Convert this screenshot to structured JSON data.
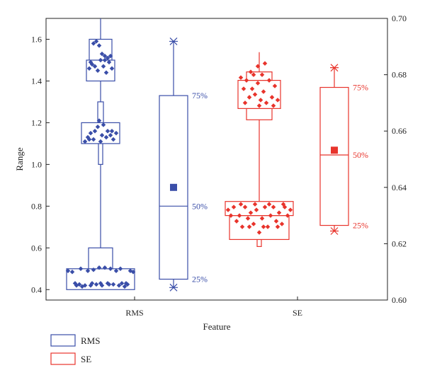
{
  "chart_data": {
    "type": "box",
    "title": "",
    "xlabel": "Feature",
    "ylabel": "Range",
    "y_left": {
      "min": 0.35,
      "max": 1.7,
      "ticks": [
        0.4,
        0.6,
        0.8,
        1.0,
        1.2,
        1.4,
        1.6
      ],
      "tick_labels": [
        "0.4",
        "0.6",
        "0.8",
        "1.0",
        "1.2",
        "1.4",
        "1.6"
      ]
    },
    "y_right": {
      "min": 0.6,
      "max": 0.7,
      "ticks": [
        0.6,
        0.62,
        0.64,
        0.66,
        0.68,
        0.7
      ],
      "tick_labels": [
        "0.60",
        "0.62",
        "0.64",
        "0.66",
        "0.68",
        "0.70"
      ]
    },
    "categories": [
      "RMS",
      "SE"
    ],
    "legend": {
      "placement": "bottom-left",
      "entries": [
        "RMS",
        "SE"
      ]
    },
    "series": [
      {
        "name": "RMS",
        "color": "#3a4ea8",
        "axis": "left",
        "whisker": [
          0.4,
          1.7
        ],
        "bins": [
          {
            "low": 0.4,
            "high": 0.5,
            "half": 48
          },
          {
            "low": 0.5,
            "high": 0.6,
            "half": 17
          },
          {
            "low": 1.0,
            "high": 1.1,
            "half": 3
          },
          {
            "low": 1.1,
            "high": 1.2,
            "half": 27
          },
          {
            "low": 1.2,
            "high": 1.3,
            "half": 4
          },
          {
            "low": 1.4,
            "high": 1.5,
            "half": 20
          },
          {
            "low": 1.5,
            "high": 1.6,
            "half": 16
          }
        ],
        "points": [
          {
            "dx": -46,
            "y": 0.49
          },
          {
            "dx": -40,
            "y": 0.485
          },
          {
            "dx": -34,
            "y": 0.42
          },
          {
            "dx": -30,
            "y": 0.425
          },
          {
            "dx": -26,
            "y": 0.415
          },
          {
            "dx": -22,
            "y": 0.42
          },
          {
            "dx": -18,
            "y": 0.49
          },
          {
            "dx": -14,
            "y": 0.42
          },
          {
            "dx": -10,
            "y": 0.495
          },
          {
            "dx": -6,
            "y": 0.425
          },
          {
            "dx": -2,
            "y": 0.505
          },
          {
            "dx": 2,
            "y": 0.42
          },
          {
            "dx": 6,
            "y": 0.505
          },
          {
            "dx": 10,
            "y": 0.43
          },
          {
            "dx": 14,
            "y": 0.5
          },
          {
            "dx": 18,
            "y": 0.425
          },
          {
            "dx": 22,
            "y": 0.49
          },
          {
            "dx": 26,
            "y": 0.42
          },
          {
            "dx": 30,
            "y": 0.43
          },
          {
            "dx": 34,
            "y": 0.415
          },
          {
            "dx": 38,
            "y": 0.425
          },
          {
            "dx": 42,
            "y": 0.49
          },
          {
            "dx": 46,
            "y": 0.485
          },
          {
            "dx": -36,
            "y": 0.43
          },
          {
            "dx": -28,
            "y": 0.5
          },
          {
            "dx": -12,
            "y": 0.43
          },
          {
            "dx": 0,
            "y": 0.43
          },
          {
            "dx": 12,
            "y": 0.425
          },
          {
            "dx": 28,
            "y": 0.5
          },
          {
            "dx": 36,
            "y": 0.43
          },
          {
            "dx": -22,
            "y": 1.11
          },
          {
            "dx": -18,
            "y": 1.13
          },
          {
            "dx": -14,
            "y": 1.15
          },
          {
            "dx": -10,
            "y": 1.12
          },
          {
            "dx": -8,
            "y": 1.16
          },
          {
            "dx": -4,
            "y": 1.18
          },
          {
            "dx": -2,
            "y": 1.21
          },
          {
            "dx": 2,
            "y": 1.14
          },
          {
            "dx": 4,
            "y": 1.19
          },
          {
            "dx": 8,
            "y": 1.13
          },
          {
            "dx": 10,
            "y": 1.16
          },
          {
            "dx": 14,
            "y": 1.14
          },
          {
            "dx": 18,
            "y": 1.12
          },
          {
            "dx": 22,
            "y": 1.15
          },
          {
            "dx": -16,
            "y": 1.12
          },
          {
            "dx": 0,
            "y": 1.11
          },
          {
            "dx": 16,
            "y": 1.16
          },
          {
            "dx": -16,
            "y": 1.46
          },
          {
            "dx": -12,
            "y": 1.48
          },
          {
            "dx": -8,
            "y": 1.47
          },
          {
            "dx": -4,
            "y": 1.45
          },
          {
            "dx": 0,
            "y": 1.5
          },
          {
            "dx": 4,
            "y": 1.47
          },
          {
            "dx": 8,
            "y": 1.44
          },
          {
            "dx": 12,
            "y": 1.49
          },
          {
            "dx": 16,
            "y": 1.46
          },
          {
            "dx": -10,
            "y": 1.58
          },
          {
            "dx": -6,
            "y": 1.59
          },
          {
            "dx": -2,
            "y": 1.57
          },
          {
            "dx": 2,
            "y": 1.53
          },
          {
            "dx": 6,
            "y": 1.52
          },
          {
            "dx": 10,
            "y": 1.51
          },
          {
            "dx": 14,
            "y": 1.52
          },
          {
            "dx": -14,
            "y": 1.49
          },
          {
            "dx": 6,
            "y": 1.5
          }
        ],
        "summary_box": {
          "q1": 0.45,
          "median": 0.8,
          "q3": 1.33,
          "mean": 0.89,
          "min": 0.41,
          "max": 1.59
        }
      },
      {
        "name": "SE",
        "color": "#e8342c",
        "axis": "right",
        "whisker": [
          0.619,
          0.688
        ],
        "bins": [
          {
            "low": 0.619,
            "high": 0.6215,
            "half": 3
          },
          {
            "low": 0.6215,
            "high": 0.63,
            "half": 42
          },
          {
            "low": 0.63,
            "high": 0.635,
            "half": 48
          },
          {
            "low": 0.664,
            "high": 0.668,
            "half": 18
          },
          {
            "low": 0.668,
            "high": 0.678,
            "half": 30
          },
          {
            "low": 0.678,
            "high": 0.681,
            "half": 18
          }
        ],
        "points": [
          {
            "dx": -44,
            "y": 0.632
          },
          {
            "dx": -40,
            "y": 0.63
          },
          {
            "dx": -36,
            "y": 0.633
          },
          {
            "dx": -32,
            "y": 0.628
          },
          {
            "dx": -28,
            "y": 0.63
          },
          {
            "dx": -24,
            "y": 0.626
          },
          {
            "dx": -20,
            "y": 0.633
          },
          {
            "dx": -16,
            "y": 0.629
          },
          {
            "dx": -12,
            "y": 0.631
          },
          {
            "dx": -8,
            "y": 0.627
          },
          {
            "dx": -4,
            "y": 0.632
          },
          {
            "dx": 0,
            "y": 0.624
          },
          {
            "dx": 4,
            "y": 0.629
          },
          {
            "dx": 8,
            "y": 0.633
          },
          {
            "dx": 12,
            "y": 0.626
          },
          {
            "dx": 16,
            "y": 0.63
          },
          {
            "dx": 20,
            "y": 0.633
          },
          {
            "dx": 24,
            "y": 0.628
          },
          {
            "dx": 28,
            "y": 0.631
          },
          {
            "dx": 32,
            "y": 0.627
          },
          {
            "dx": 36,
            "y": 0.633
          },
          {
            "dx": 40,
            "y": 0.63
          },
          {
            "dx": 44,
            "y": 0.632
          },
          {
            "dx": -26,
            "y": 0.634
          },
          {
            "dx": -6,
            "y": 0.634
          },
          {
            "dx": 14,
            "y": 0.634
          },
          {
            "dx": 34,
            "y": 0.634
          },
          {
            "dx": -14,
            "y": 0.626
          },
          {
            "dx": 6,
            "y": 0.626
          },
          {
            "dx": 26,
            "y": 0.626
          },
          {
            "dx": -26,
            "y": 0.679
          },
          {
            "dx": -22,
            "y": 0.675
          },
          {
            "dx": -18,
            "y": 0.678
          },
          {
            "dx": -14,
            "y": 0.672
          },
          {
            "dx": -10,
            "y": 0.675
          },
          {
            "dx": -6,
            "y": 0.673
          },
          {
            "dx": -2,
            "y": 0.677
          },
          {
            "dx": 2,
            "y": 0.671
          },
          {
            "dx": 6,
            "y": 0.674
          },
          {
            "dx": 10,
            "y": 0.67
          },
          {
            "dx": 14,
            "y": 0.678
          },
          {
            "dx": 18,
            "y": 0.672
          },
          {
            "dx": 22,
            "y": 0.676
          },
          {
            "dx": 26,
            "y": 0.671
          },
          {
            "dx": -20,
            "y": 0.67
          },
          {
            "dx": 0,
            "y": 0.669
          },
          {
            "dx": 20,
            "y": 0.669
          },
          {
            "dx": -8,
            "y": 0.68
          },
          {
            "dx": 4,
            "y": 0.68
          },
          {
            "dx": -2,
            "y": 0.683
          },
          {
            "dx": 8,
            "y": 0.684
          },
          {
            "dx": -12,
            "y": 0.681
          }
        ],
        "summary_box": {
          "q1": 0.6265,
          "median": 0.6515,
          "q3": 0.6755,
          "mean": 0.6532,
          "min": 0.6245,
          "max": 0.6825
        }
      }
    ],
    "summary_labels": {
      "q3": "75%",
      "median": "50%",
      "q1": "25%"
    }
  }
}
